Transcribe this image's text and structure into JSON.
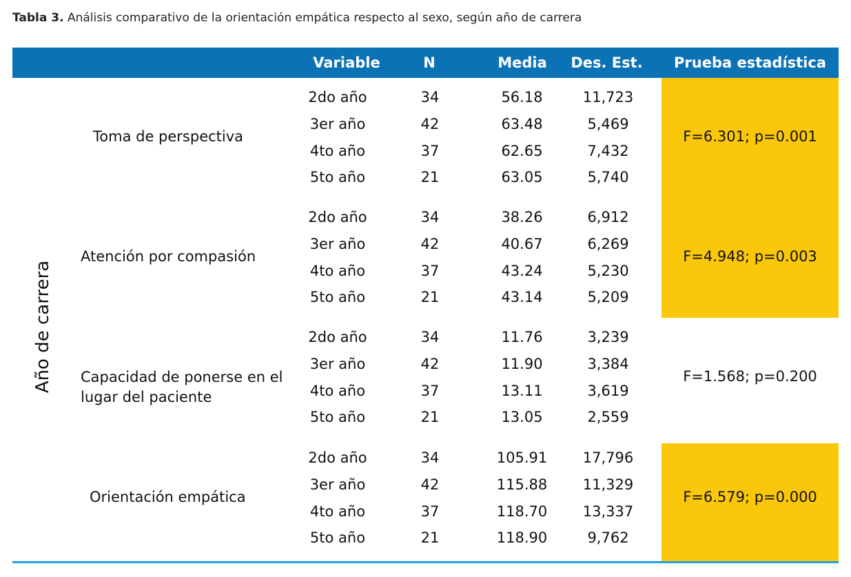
{
  "caption": {
    "label": "Tabla 3.",
    "text": " Análisis comparativo de la orientación empática respecto al sexo, según año de carrera"
  },
  "header": {
    "variable": "Variable",
    "n": "N",
    "media": "Media",
    "desv": "Des. Est.",
    "prueba": "Prueba estadística"
  },
  "row_axis_label": "Año de carrera",
  "groups": [
    {
      "name": "Toma de perspectiva",
      "stat": "F=6.301; p=0.001",
      "highlighted": true,
      "rows": [
        {
          "variable": "2do año",
          "n": "34",
          "media": "56.18",
          "desv": "11,723"
        },
        {
          "variable": "3er año",
          "n": "42",
          "media": "63.48",
          "desv": "5,469"
        },
        {
          "variable": "4to año",
          "n": "37",
          "media": "62.65",
          "desv": "7,432"
        },
        {
          "variable": "5to año",
          "n": "21",
          "media": "63.05",
          "desv": "5,740"
        }
      ]
    },
    {
      "name": "Atención por compasión",
      "stat": "F=4.948; p=0.003",
      "highlighted": true,
      "rows": [
        {
          "variable": "2do año",
          "n": "34",
          "media": "38.26",
          "desv": "6,912"
        },
        {
          "variable": "3er año",
          "n": "42",
          "media": "40.67",
          "desv": "6,269"
        },
        {
          "variable": "4to año",
          "n": "37",
          "media": "43.24",
          "desv": "5,230"
        },
        {
          "variable": "5to año",
          "n": "21",
          "media": "43.14",
          "desv": "5,209"
        }
      ]
    },
    {
      "name": "Capacidad de ponerse en el lugar del paciente",
      "stat": "F=1.568; p=0.200",
      "highlighted": false,
      "rows": [
        {
          "variable": "2do año",
          "n": "34",
          "media": "11.76",
          "desv": "3,239"
        },
        {
          "variable": "3er año",
          "n": "42",
          "media": "11.90",
          "desv": "3,384"
        },
        {
          "variable": "4to año",
          "n": "37",
          "media": "13.11",
          "desv": "3,619"
        },
        {
          "variable": "5to año",
          "n": "21",
          "media": "13.05",
          "desv": "2,559"
        }
      ]
    },
    {
      "name": "Orientación empática",
      "stat": "F=6.579; p=0.000",
      "highlighted": true,
      "rows": [
        {
          "variable": "2do año",
          "n": "34",
          "media": "105.91",
          "desv": "17,796"
        },
        {
          "variable": "3er año",
          "n": "42",
          "media": "115.88",
          "desv": "11,329"
        },
        {
          "variable": "4to año",
          "n": "37",
          "media": "118.70",
          "desv": "13,337"
        },
        {
          "variable": "5to año",
          "n": "21",
          "media": "118.90",
          "desv": "9,762"
        }
      ]
    }
  ],
  "colors": {
    "header_bg": "#0b72b5",
    "highlight": "#fbc70a",
    "bottom_rule": "#1aa3de"
  }
}
